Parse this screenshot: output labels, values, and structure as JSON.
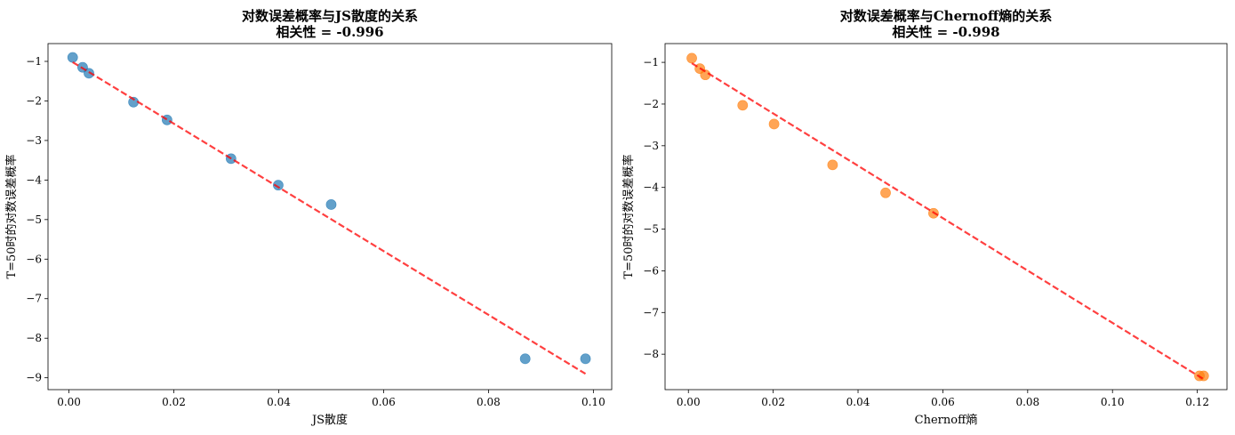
{
  "chart_data": [
    {
      "type": "scatter",
      "title": "对数误差概率与JS散度的关系",
      "subtitle": "相关性 = -0.996",
      "xlabel": "JS散度",
      "ylabel": "T=50时的对数误差概率",
      "xlim": [
        -0.004,
        0.1035
      ],
      "ylim": [
        -9.3,
        -0.55
      ],
      "xticks": [
        0.0,
        0.02,
        0.04,
        0.06,
        0.08,
        0.1
      ],
      "xtick_labels": [
        "0.00",
        "0.02",
        "0.04",
        "0.06",
        "0.08",
        "0.10"
      ],
      "yticks": [
        -1,
        -2,
        -3,
        -4,
        -5,
        -6,
        -7,
        -8,
        -9
      ],
      "ytick_labels": [
        "−1",
        "−2",
        "−3",
        "−4",
        "−5",
        "−6",
        "−7",
        "−8",
        "−9"
      ],
      "marker_color": "#1f77b4",
      "fit_color": "#ff0000",
      "points": [
        {
          "x": 0.0007,
          "y": -0.9
        },
        {
          "x": 0.0026,
          "y": -1.15
        },
        {
          "x": 0.0038,
          "y": -1.3
        },
        {
          "x": 0.0123,
          "y": -2.03
        },
        {
          "x": 0.0187,
          "y": -2.48
        },
        {
          "x": 0.0309,
          "y": -3.46
        },
        {
          "x": 0.0399,
          "y": -4.13
        },
        {
          "x": 0.05,
          "y": -4.62
        },
        {
          "x": 0.087,
          "y": -8.52
        },
        {
          "x": 0.0985,
          "y": -8.52
        }
      ],
      "fit": {
        "x": [
          0.0007,
          0.0985
        ],
        "y": [
          -1.02,
          -8.9
        ]
      }
    },
    {
      "type": "scatter",
      "title": "对数误差概率与Chernoff熵的关系",
      "subtitle": "相关性 = -0.998",
      "xlabel": "Chernoff熵",
      "ylabel": "T=50时的对数误差概率",
      "xlim": [
        -0.0055,
        0.127
      ],
      "ylim": [
        -8.85,
        -0.55
      ],
      "xticks": [
        0.0,
        0.02,
        0.04,
        0.06,
        0.08,
        0.1,
        0.12
      ],
      "xtick_labels": [
        "0.00",
        "0.02",
        "0.04",
        "0.06",
        "0.08",
        "0.10",
        "0.12"
      ],
      "yticks": [
        -1,
        -2,
        -3,
        -4,
        -5,
        -6,
        -7,
        -8
      ],
      "ytick_labels": [
        "−1",
        "−2",
        "−3",
        "−4",
        "−5",
        "−6",
        "−7",
        "−8"
      ],
      "marker_color": "#ff7f0e",
      "fit_color": "#ff0000",
      "points": [
        {
          "x": 0.0008,
          "y": -0.9
        },
        {
          "x": 0.0027,
          "y": -1.15
        },
        {
          "x": 0.004,
          "y": -1.3
        },
        {
          "x": 0.0128,
          "y": -2.03
        },
        {
          "x": 0.0202,
          "y": -2.48
        },
        {
          "x": 0.034,
          "y": -3.46
        },
        {
          "x": 0.0465,
          "y": -4.13
        },
        {
          "x": 0.0578,
          "y": -4.62
        },
        {
          "x": 0.1205,
          "y": -8.52
        },
        {
          "x": 0.1215,
          "y": -8.52
        }
      ],
      "fit": {
        "x": [
          0.0008,
          0.1215
        ],
        "y": [
          -1.02,
          -8.6
        ]
      }
    }
  ]
}
